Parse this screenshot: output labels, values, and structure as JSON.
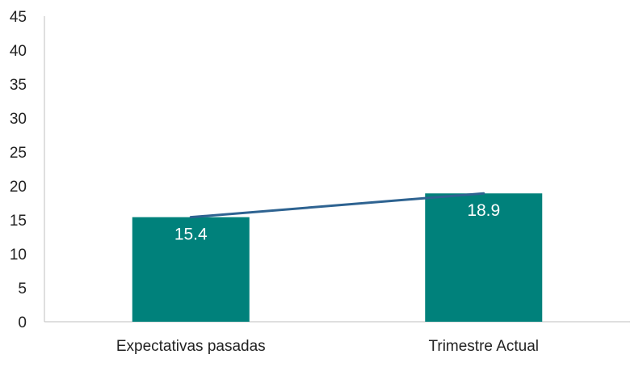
{
  "chart_data": {
    "type": "bar",
    "categories": [
      "Expectativas pasadas",
      "Trimestre Actual"
    ],
    "values": [
      15.4,
      18.9
    ],
    "data_labels": [
      "15.4",
      "18.9"
    ],
    "overlay_line": {
      "type": "line",
      "values": [
        15.4,
        18.9
      ]
    },
    "y_ticks": [
      "0",
      "5",
      "10",
      "15",
      "20",
      "25",
      "30",
      "35",
      "40",
      "45"
    ],
    "ylim": [
      0,
      45
    ],
    "grid": false,
    "legend": "none",
    "colors": {
      "bar": "#00817b",
      "line": "#2e6391",
      "axis": "#bfbfbf",
      "text": "#222222"
    }
  }
}
